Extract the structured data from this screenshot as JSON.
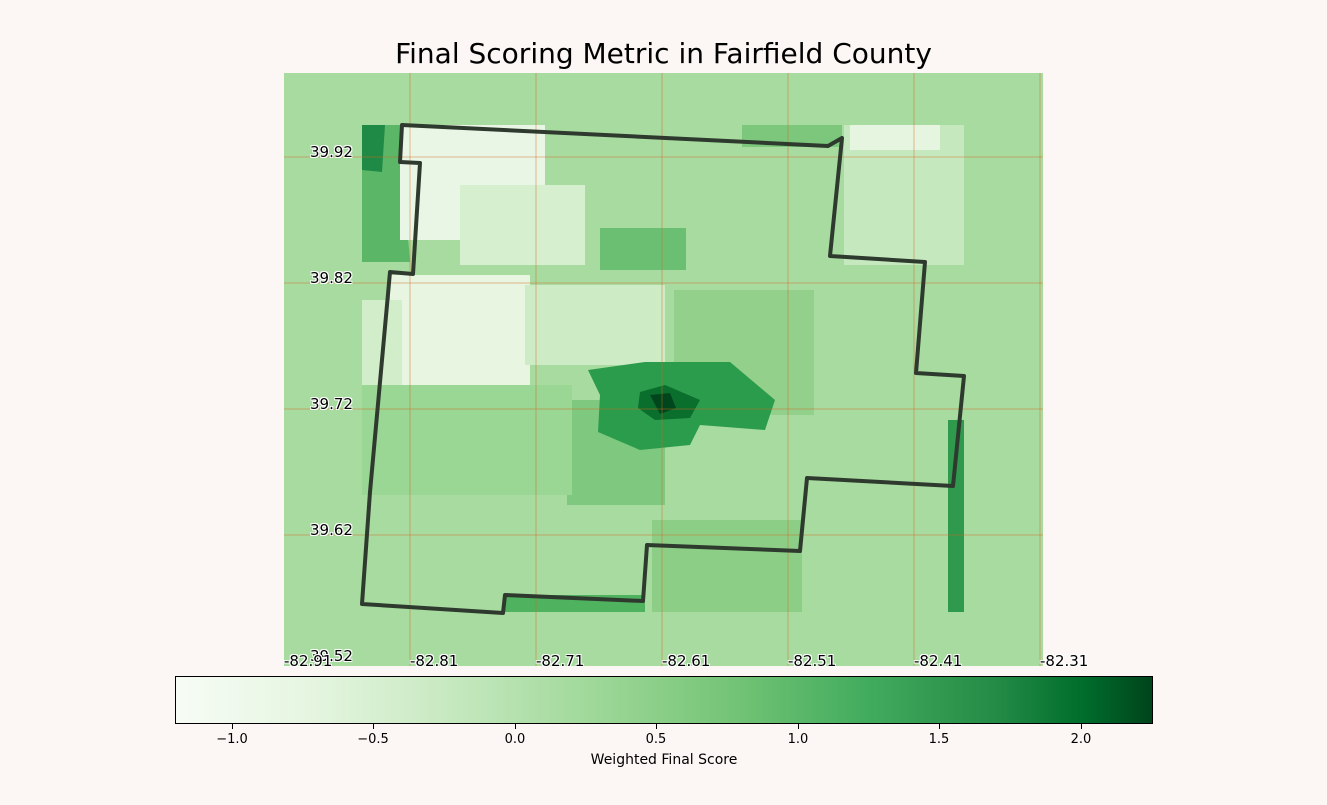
{
  "title": "Final Scoring Metric in Fairfield County",
  "map": {
    "latitude_labels": [
      "39.92",
      "39.82",
      "39.72",
      "39.62",
      "39.52"
    ],
    "longitude_labels": [
      "-82.91",
      "-82.81",
      "-82.71",
      "-82.61",
      "-82.51",
      "-82.41",
      "-82.31"
    ],
    "gridline_color": "#d2691e",
    "boundary_color": "#2f3a2f",
    "colormap": "Greens"
  },
  "colorbar": {
    "label": "Weighted Final Score",
    "ticks": [
      "−1.0",
      "−0.5",
      "0.0",
      "0.5",
      "1.0",
      "1.5",
      "2.0"
    ],
    "range": [
      -1.2,
      2.25
    ]
  },
  "chart_data": {
    "type": "heatmap",
    "title": "Final Scoring Metric in Fairfield County",
    "xlabel": "",
    "ylabel": "",
    "x_ticks": [
      -82.91,
      -82.81,
      -82.71,
      -82.61,
      -82.51,
      -82.41,
      -82.31
    ],
    "y_ticks": [
      39.92,
      39.82,
      39.72,
      39.62,
      39.52
    ],
    "colorbar_label": "Weighted Final Score",
    "colorbar_range": [
      -1.2,
      2.25
    ],
    "colorbar_ticks": [
      -1.0,
      -0.5,
      0.0,
      0.5,
      1.0,
      1.5,
      2.0
    ]
  }
}
